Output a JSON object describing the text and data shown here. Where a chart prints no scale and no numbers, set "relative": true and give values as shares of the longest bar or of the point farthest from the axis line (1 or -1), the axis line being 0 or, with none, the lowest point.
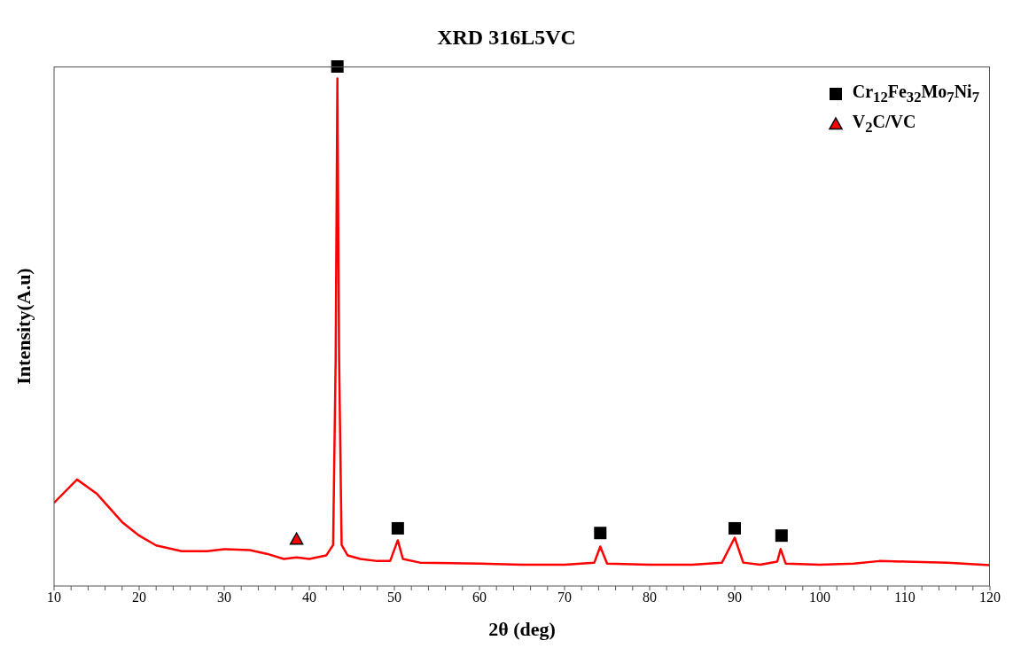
{
  "chart_data": {
    "type": "line",
    "title": "XRD 316L5VC",
    "xlabel": "2θ (deg)",
    "ylabel": "Intensity(A.u)",
    "relative": true,
    "xlim": [
      10,
      120
    ],
    "xticks": [
      10,
      {
        "value": 12,
        "label": null
      },
      {
        "value": 14,
        "label": null
      },
      {
        "value": 16,
        "label": null
      },
      {
        "value": 18,
        "label": null
      },
      20,
      {
        "value": 22,
        "label": null
      },
      {
        "value": 24,
        "label": null
      },
      {
        "value": 26,
        "label": null
      },
      {
        "value": 28,
        "label": null
      },
      30,
      {
        "value": 32,
        "label": null
      },
      {
        "value": 34,
        "label": null
      },
      {
        "value": 36,
        "label": null
      },
      {
        "value": 38,
        "label": null
      },
      40,
      {
        "value": 42,
        "label": null
      },
      {
        "value": 44,
        "label": null
      },
      {
        "value": 46,
        "label": null
      },
      {
        "value": 48,
        "label": null
      },
      50,
      {
        "value": 52,
        "label": null
      },
      {
        "value": 54,
        "label": null
      },
      {
        "value": 56,
        "label": null
      },
      {
        "value": 58,
        "label": null
      },
      60,
      {
        "value": 62,
        "label": null
      },
      {
        "value": 64,
        "label": null
      },
      {
        "value": 66,
        "label": null
      },
      {
        "value": 68,
        "label": null
      },
      70,
      {
        "value": 72,
        "label": null
      },
      {
        "value": 74,
        "label": null
      },
      {
        "value": 76,
        "label": null
      },
      {
        "value": 78,
        "label": null
      },
      80,
      {
        "value": 82,
        "label": null
      },
      {
        "value": 84,
        "label": null
      },
      {
        "value": 86,
        "label": null
      },
      {
        "value": 88,
        "label": null
      },
      90,
      {
        "value": 92,
        "label": null
      },
      {
        "value": 94,
        "label": null
      },
      {
        "value": 96,
        "label": null
      },
      {
        "value": 98,
        "label": null
      },
      100,
      {
        "value": 102,
        "label": null
      },
      {
        "value": 104,
        "label": null
      },
      {
        "value": 106,
        "label": null
      },
      {
        "value": 108,
        "label": null
      },
      110,
      {
        "value": 112,
        "label": null
      },
      {
        "value": 114,
        "label": null
      },
      {
        "value": 116,
        "label": null
      },
      {
        "value": 118,
        "label": null
      },
      120
    ],
    "legend": "top right",
    "grid": false,
    "line_style": "solid",
    "series": [
      {
        "color": "#ff0000",
        "marker": "none",
        "x": [
          10,
          12.7,
          15,
          18,
          20,
          22,
          25,
          28,
          30,
          33,
          35,
          37,
          38.5,
          40,
          42,
          42.8,
          43.1,
          43.3,
          43.5,
          43.8,
          44.5,
          46,
          48,
          49.5,
          50.4,
          51,
          53,
          60,
          65,
          70,
          73.5,
          74.2,
          75,
          80,
          85,
          88.5,
          90,
          91,
          93,
          95,
          95.4,
          96,
          100,
          104,
          107,
          110,
          115,
          120
        ],
        "values": [
          0.16,
          0.205,
          0.178,
          0.123,
          0.097,
          0.078,
          0.067,
          0.067,
          0.071,
          0.069,
          0.062,
          0.052,
          0.055,
          0.052,
          0.059,
          0.079,
          0.44,
          0.977,
          0.44,
          0.079,
          0.059,
          0.052,
          0.048,
          0.048,
          0.088,
          0.052,
          0.045,
          0.043,
          0.041,
          0.041,
          0.045,
          0.076,
          0.043,
          0.041,
          0.041,
          0.045,
          0.093,
          0.045,
          0.041,
          0.047,
          0.071,
          0.043,
          0.041,
          0.043,
          0.048,
          0.047,
          0.045,
          0.04
        ]
      },
      {
        "type": "scatter",
        "name": "Cr$_{12}$Fe$_{32}$Mo$_{7}$Ni$_{7}$",
        "color": "#000000",
        "marker": "square",
        "x": [
          43.3,
          50.4,
          74.2,
          90,
          95.5
        ],
        "values": [
          1,
          0.111,
          0.102,
          0.111,
          0.097
        ]
      },
      {
        "type": "scatter",
        "name": "V$_{2}$C/VC",
        "color": "#ff0000",
        "marker": "triangle",
        "x": [
          38.5
        ],
        "values": [
          0.09
        ]
      }
    ]
  }
}
